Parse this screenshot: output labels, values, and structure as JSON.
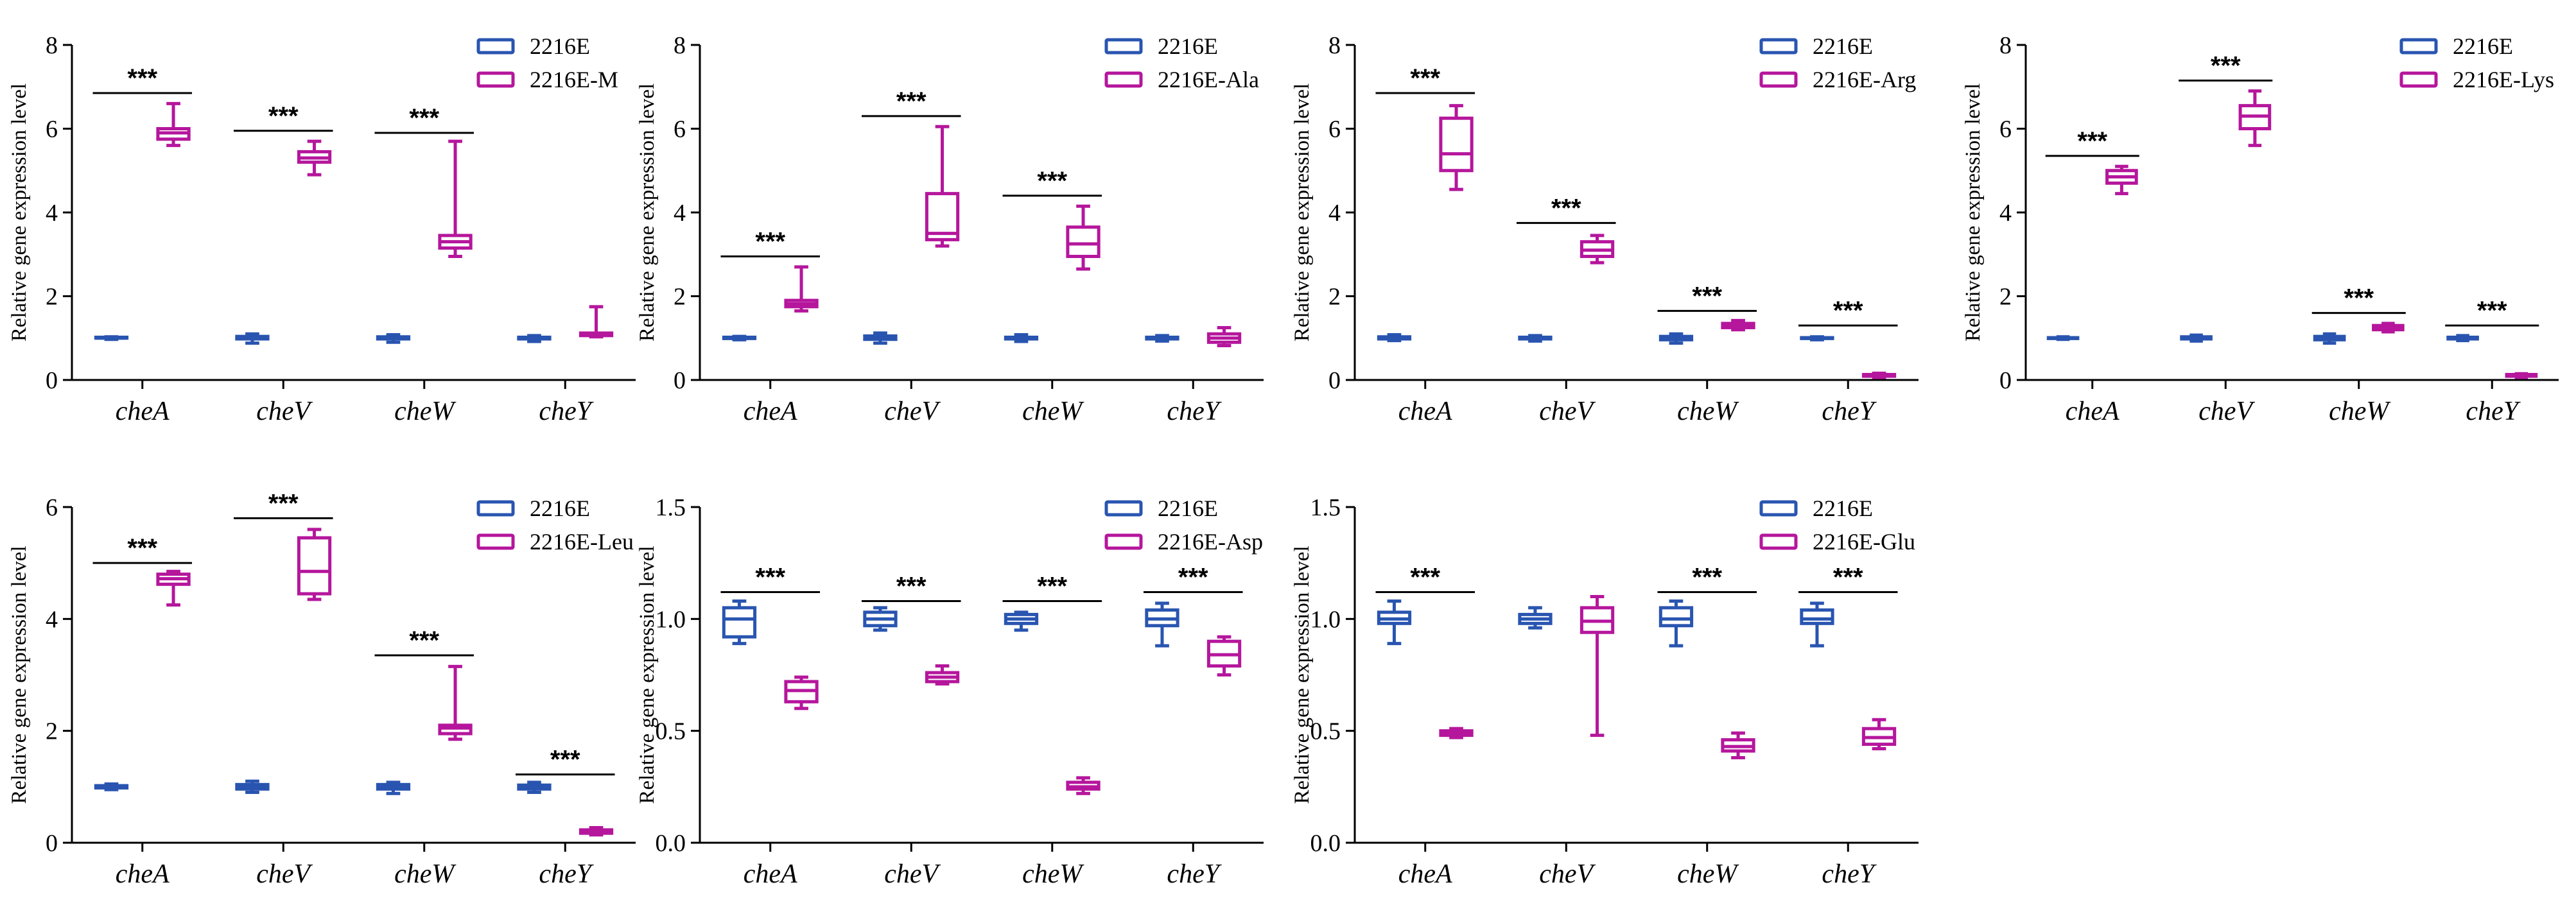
{
  "colors": {
    "ctrl": "#2955b0",
    "treat": "#b5169c",
    "axis": "#000000"
  },
  "chart_data": [
    {
      "type": "box",
      "ylabel": "Relative gene expression level",
      "ylim": [
        0,
        8
      ],
      "yticks": [
        0,
        2,
        4,
        6,
        8
      ],
      "ytick_labels": [
        "0",
        "2",
        "4",
        "6",
        "8"
      ],
      "categories": [
        "cheA",
        "cheV",
        "cheW",
        "cheY"
      ],
      "series": [
        {
          "name": "2216E",
          "role": "ctrl",
          "boxes": [
            [
              0.97,
              1.0,
              1.0,
              1.02,
              1.03
            ],
            [
              0.88,
              0.98,
              1.0,
              1.04,
              1.1
            ],
            [
              0.9,
              0.98,
              1.0,
              1.03,
              1.08
            ],
            [
              0.92,
              0.98,
              1.0,
              1.02,
              1.06
            ]
          ]
        },
        {
          "name": "2216E-M",
          "role": "treat",
          "boxes": [
            [
              5.6,
              5.75,
              5.9,
              6.0,
              6.6
            ],
            [
              4.9,
              5.2,
              5.3,
              5.45,
              5.7
            ],
            [
              2.95,
              3.15,
              3.3,
              3.45,
              5.7
            ],
            [
              1.03,
              1.06,
              1.1,
              1.12,
              1.75
            ]
          ]
        }
      ],
      "significance": [
        {
          "category": "cheA",
          "label": "***",
          "y": 6.85
        },
        {
          "category": "cheV",
          "label": "***",
          "y": 5.95
        },
        {
          "category": "cheW",
          "label": "***",
          "y": 5.9
        }
      ]
    },
    {
      "type": "box",
      "ylabel": "Relative gene expression level",
      "ylim": [
        0,
        8
      ],
      "yticks": [
        0,
        2,
        4,
        6,
        8
      ],
      "ytick_labels": [
        "0",
        "2",
        "4",
        "6",
        "8"
      ],
      "categories": [
        "cheA",
        "cheV",
        "cheW",
        "cheY"
      ],
      "series": [
        {
          "name": "2216E",
          "role": "ctrl",
          "boxes": [
            [
              0.96,
              0.99,
              1.0,
              1.02,
              1.04
            ],
            [
              0.88,
              0.97,
              1.0,
              1.05,
              1.12
            ],
            [
              0.92,
              0.98,
              1.0,
              1.02,
              1.08
            ],
            [
              0.93,
              0.98,
              1.0,
              1.02,
              1.06
            ]
          ]
        },
        {
          "name": "2216E-Ala",
          "role": "treat",
          "boxes": [
            [
              1.65,
              1.75,
              1.82,
              1.9,
              2.7
            ],
            [
              3.2,
              3.35,
              3.5,
              4.45,
              6.05
            ],
            [
              2.65,
              2.95,
              3.25,
              3.65,
              4.15
            ],
            [
              0.82,
              0.9,
              1.0,
              1.1,
              1.25
            ]
          ]
        }
      ],
      "significance": [
        {
          "category": "cheA",
          "label": "***",
          "y": 2.95
        },
        {
          "category": "cheV",
          "label": "***",
          "y": 6.3
        },
        {
          "category": "cheW",
          "label": "***",
          "y": 4.4
        }
      ]
    },
    {
      "type": "box",
      "ylabel": "Relative gene expression level",
      "ylim": [
        0,
        8
      ],
      "yticks": [
        0,
        2,
        4,
        6,
        8
      ],
      "ytick_labels": [
        "0",
        "2",
        "4",
        "6",
        "8"
      ],
      "categories": [
        "cheA",
        "cheV",
        "cheW",
        "cheY"
      ],
      "series": [
        {
          "name": "2216E",
          "role": "ctrl",
          "boxes": [
            [
              0.94,
              0.98,
              1.0,
              1.03,
              1.08
            ],
            [
              0.93,
              0.98,
              1.0,
              1.02,
              1.06
            ],
            [
              0.88,
              0.96,
              1.0,
              1.04,
              1.1
            ],
            [
              0.96,
              0.99,
              1.0,
              1.01,
              1.03
            ]
          ]
        },
        {
          "name": "2216E-Arg",
          "role": "treat",
          "boxes": [
            [
              4.55,
              5.0,
              5.4,
              6.25,
              6.55
            ],
            [
              2.8,
              2.95,
              3.1,
              3.3,
              3.45
            ],
            [
              1.2,
              1.25,
              1.3,
              1.35,
              1.42
            ],
            [
              0.06,
              0.09,
              0.11,
              0.13,
              0.16
            ]
          ]
        }
      ],
      "significance": [
        {
          "category": "cheA",
          "label": "***",
          "y": 6.85
        },
        {
          "category": "cheV",
          "label": "***",
          "y": 3.75
        },
        {
          "category": "cheW",
          "label": "***",
          "y": 1.65
        },
        {
          "category": "cheY",
          "label": "***",
          "y": 1.3
        }
      ]
    },
    {
      "type": "box",
      "ylabel": "Relative gene expression level",
      "ylim": [
        0,
        8
      ],
      "yticks": [
        0,
        2,
        4,
        6,
        8
      ],
      "ytick_labels": [
        "0",
        "2",
        "4",
        "6",
        "8"
      ],
      "categories": [
        "cheA",
        "cheV",
        "cheW",
        "cheY"
      ],
      "series": [
        {
          "name": "2216E",
          "role": "ctrl",
          "boxes": [
            [
              0.97,
              0.99,
              1.0,
              1.01,
              1.03
            ],
            [
              0.93,
              0.98,
              1.0,
              1.03,
              1.07
            ],
            [
              0.88,
              0.96,
              1.0,
              1.04,
              1.1
            ],
            [
              0.94,
              0.98,
              1.0,
              1.02,
              1.06
            ]
          ]
        },
        {
          "name": "2216E-Lys",
          "role": "treat",
          "boxes": [
            [
              4.45,
              4.7,
              4.85,
              5.0,
              5.1
            ],
            [
              5.6,
              6.0,
              6.3,
              6.55,
              6.9
            ],
            [
              1.15,
              1.2,
              1.25,
              1.3,
              1.35
            ],
            [
              0.06,
              0.09,
              0.11,
              0.13,
              0.15
            ]
          ]
        }
      ],
      "significance": [
        {
          "category": "cheA",
          "label": "***",
          "y": 5.35
        },
        {
          "category": "cheV",
          "label": "***",
          "y": 7.15
        },
        {
          "category": "cheW",
          "label": "***",
          "y": 1.6
        },
        {
          "category": "cheY",
          "label": "***",
          "y": 1.3
        }
      ]
    },
    {
      "type": "box",
      "ylabel": "Relative gene expression level",
      "ylim": [
        0,
        6
      ],
      "yticks": [
        0,
        2,
        4,
        6
      ],
      "ytick_labels": [
        "0",
        "2",
        "4",
        "6"
      ],
      "categories": [
        "cheA",
        "cheV",
        "cheW",
        "cheY"
      ],
      "series": [
        {
          "name": "2216E",
          "role": "ctrl",
          "boxes": [
            [
              0.95,
              0.98,
              1.0,
              1.02,
              1.05
            ],
            [
              0.9,
              0.96,
              1.0,
              1.04,
              1.1
            ],
            [
              0.88,
              0.96,
              1.0,
              1.04,
              1.08
            ],
            [
              0.9,
              0.96,
              1.0,
              1.03,
              1.08
            ]
          ]
        },
        {
          "name": "2216E-Leu",
          "role": "treat",
          "boxes": [
            [
              4.25,
              4.62,
              4.72,
              4.8,
              4.85
            ],
            [
              4.35,
              4.45,
              4.85,
              5.45,
              5.6
            ],
            [
              1.85,
              1.95,
              2.05,
              2.1,
              3.15
            ],
            [
              0.14,
              0.17,
              0.2,
              0.23,
              0.27
            ]
          ]
        }
      ],
      "significance": [
        {
          "category": "cheA",
          "label": "***",
          "y": 5.0
        },
        {
          "category": "cheV",
          "label": "***",
          "y": 5.8
        },
        {
          "category": "cheW",
          "label": "***",
          "y": 3.35
        },
        {
          "category": "cheY",
          "label": "***",
          "y": 1.22
        }
      ]
    },
    {
      "type": "box",
      "ylabel": "Relative gene expression level",
      "ylim": [
        0,
        1.5
      ],
      "yticks": [
        0,
        0.5,
        1.0,
        1.5
      ],
      "ytick_labels": [
        "0.0",
        "0.5",
        "1.0",
        "1.5"
      ],
      "categories": [
        "cheA",
        "cheV",
        "cheW",
        "cheY"
      ],
      "series": [
        {
          "name": "2216E",
          "role": "ctrl",
          "boxes": [
            [
              0.89,
              0.92,
              1.0,
              1.05,
              1.08
            ],
            [
              0.95,
              0.97,
              1.0,
              1.03,
              1.05
            ],
            [
              0.95,
              0.98,
              1.0,
              1.02,
              1.03
            ],
            [
              0.88,
              0.97,
              1.0,
              1.04,
              1.07
            ]
          ]
        },
        {
          "name": "2216E-Asp",
          "role": "treat",
          "boxes": [
            [
              0.6,
              0.63,
              0.68,
              0.72,
              0.74
            ],
            [
              0.71,
              0.72,
              0.74,
              0.76,
              0.79
            ],
            [
              0.22,
              0.24,
              0.25,
              0.27,
              0.29
            ],
            [
              0.75,
              0.79,
              0.84,
              0.9,
              0.92
            ]
          ]
        }
      ],
      "significance": [
        {
          "category": "cheA",
          "label": "***",
          "y": 1.12
        },
        {
          "category": "cheV",
          "label": "***",
          "y": 1.08
        },
        {
          "category": "cheW",
          "label": "***",
          "y": 1.08
        },
        {
          "category": "cheY",
          "label": "***",
          "y": 1.12
        }
      ]
    },
    {
      "type": "box",
      "ylabel": "Relative gene expression level",
      "ylim": [
        0,
        1.5
      ],
      "yticks": [
        0,
        0.5,
        1.0,
        1.5
      ],
      "ytick_labels": [
        "0.0",
        "0.5",
        "1.0",
        "1.5"
      ],
      "categories": [
        "cheA",
        "cheV",
        "cheW",
        "cheY"
      ],
      "series": [
        {
          "name": "2216E",
          "role": "ctrl",
          "boxes": [
            [
              0.89,
              0.98,
              1.0,
              1.03,
              1.08
            ],
            [
              0.96,
              0.98,
              1.0,
              1.02,
              1.05
            ],
            [
              0.88,
              0.97,
              1.0,
              1.05,
              1.08
            ],
            [
              0.88,
              0.98,
              1.0,
              1.04,
              1.07
            ]
          ]
        },
        {
          "name": "2216E-Glu",
          "role": "treat",
          "boxes": [
            [
              0.47,
              0.48,
              0.49,
              0.5,
              0.51
            ],
            [
              0.48,
              0.94,
              0.99,
              1.05,
              1.1
            ],
            [
              0.38,
              0.41,
              0.43,
              0.46,
              0.49
            ],
            [
              0.42,
              0.44,
              0.47,
              0.51,
              0.55
            ]
          ]
        }
      ],
      "significance": [
        {
          "category": "cheA",
          "label": "***",
          "y": 1.12
        },
        {
          "category": "cheW",
          "label": "***",
          "y": 1.12
        },
        {
          "category": "cheY",
          "label": "***",
          "y": 1.12
        }
      ]
    }
  ]
}
